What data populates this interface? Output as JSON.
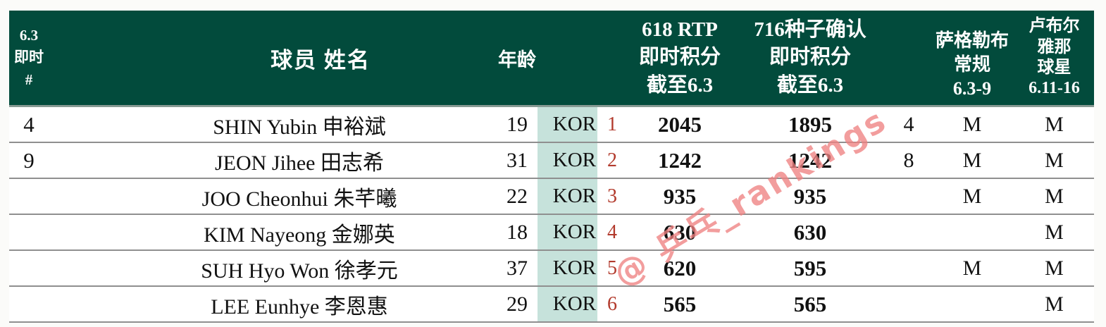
{
  "watermark": "@ 乒乓_rankings",
  "colors": {
    "header_bg": "#024b3c",
    "kor_column_bg": "#c6e2db",
    "seed_number_red": "#b23a2c",
    "watermark_pink": "#ee8282",
    "row_divider_gray": "#8f8f8f"
  },
  "chart_data": {
    "type": "table",
    "header": {
      "rank": "6.3\n即时\n#",
      "name": "球员 姓名",
      "age": "年龄",
      "nation": "",
      "seed": "",
      "rtp618": "618 RTP\n即时积分\n截至6.3",
      "seed716": "716种子确认\n即时积分\n截至6.3",
      "extra": "",
      "zagreb": "萨格勒布\n常规\n6.3-9",
      "ljubljana": "卢布尔\n雅那\n球星\n6.11-16"
    },
    "rows": [
      {
        "rank": "4",
        "name": "SHIN Yubin 申裕斌",
        "age": "19",
        "nation": "KOR",
        "seed": "1",
        "rtp618": "2045",
        "seed716": "1895",
        "extra": "4",
        "zagreb": "M",
        "ljubljana": "M"
      },
      {
        "rank": "9",
        "name": "JEON Jihee 田志希",
        "age": "31",
        "nation": "KOR",
        "seed": "2",
        "rtp618": "1242",
        "seed716": "1242",
        "extra": "8",
        "zagreb": "M",
        "ljubljana": "M"
      },
      {
        "rank": "",
        "name": "JOO Cheonhui 朱芊曦",
        "age": "22",
        "nation": "KOR",
        "seed": "3",
        "rtp618": "935",
        "seed716": "935",
        "extra": "",
        "zagreb": "M",
        "ljubljana": "M"
      },
      {
        "rank": "",
        "name": "KIM Nayeong 金娜英",
        "age": "18",
        "nation": "KOR",
        "seed": "4",
        "rtp618": "630",
        "seed716": "630",
        "extra": "",
        "zagreb": "",
        "ljubljana": "M"
      },
      {
        "rank": "",
        "name": "SUH Hyo Won 徐孝元",
        "age": "37",
        "nation": "KOR",
        "seed": "5",
        "rtp618": "620",
        "seed716": "595",
        "extra": "",
        "zagreb": "M",
        "ljubljana": "M"
      },
      {
        "rank": "",
        "name": "LEE Eunhye 李恩惠",
        "age": "29",
        "nation": "KOR",
        "seed": "6",
        "rtp618": "565",
        "seed716": "565",
        "extra": "",
        "zagreb": "",
        "ljubljana": "M"
      }
    ]
  }
}
